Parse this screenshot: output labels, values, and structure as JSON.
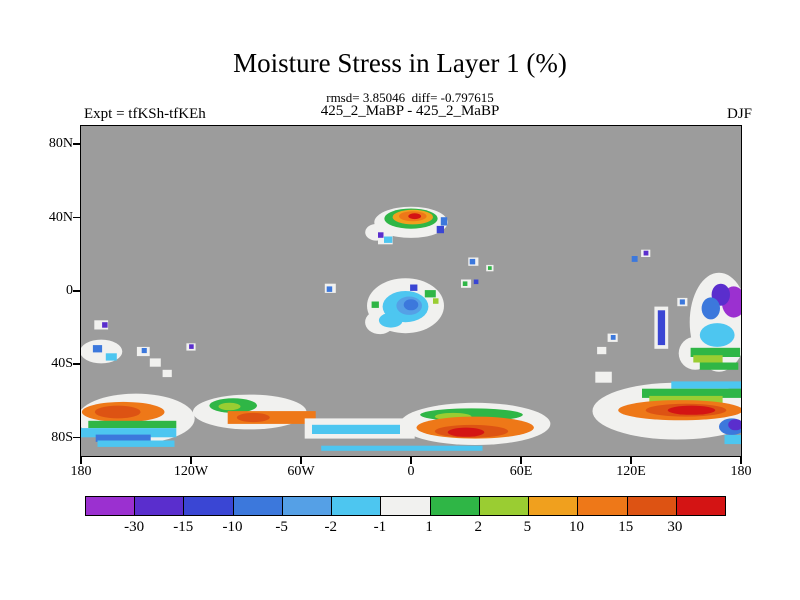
{
  "chart_data": {
    "type": "heatmap",
    "title": "Moisture Stress in Layer 1 (%)",
    "stats_line": "rmsd= 3.85046  diff= -0.797615",
    "diff_line": "425_2_MaBP - 425_2_MaBP",
    "experiment": "Expt = tfKSh-tfKEh",
    "season": "DJF",
    "units": "%",
    "projection": {
      "lon_range": [
        -180,
        180
      ],
      "lat_range": [
        -90,
        90
      ]
    },
    "axes": {
      "y_ticks": [
        {
          "label": "80N",
          "lat": 80
        },
        {
          "label": "40N",
          "lat": 40
        },
        {
          "label": "0",
          "lat": 0
        },
        {
          "label": "40S",
          "lat": -40
        },
        {
          "label": "80S",
          "lat": -80
        }
      ],
      "x_ticks": [
        {
          "label": "180",
          "lon": -180
        },
        {
          "label": "120W",
          "lon": -120
        },
        {
          "label": "60W",
          "lon": -60
        },
        {
          "label": "0",
          "lon": 0
        },
        {
          "label": "60E",
          "lon": 60
        },
        {
          "label": "120E",
          "lon": 120
        },
        {
          "label": "180",
          "lon": 180
        }
      ]
    },
    "palette": {
      "purple": "#9B30D0",
      "indigo": "#5A2ECD",
      "dblue": "#3A46D4",
      "mblue": "#3C78DC",
      "lblue": "#55A0E6",
      "cyan": "#4DC6F0",
      "white": "#F1F1EF",
      "green": "#2FB646",
      "ygreen": "#9ACD32",
      "gold": "#F0A01E",
      "orange": "#EE7818",
      "dorange": "#DD5313",
      "red": "#D41414"
    },
    "colorbar": {
      "levels": [
        -30,
        -15,
        -10,
        -5,
        -2,
        -1,
        1,
        2,
        5,
        10,
        15,
        30
      ],
      "labels": [
        "-30",
        "-15",
        "-10",
        "-5",
        "-2",
        "-1",
        "1",
        "2",
        "5",
        "10",
        "15",
        "30"
      ],
      "color_keys": [
        "purple",
        "indigo",
        "dblue",
        "mblue",
        "lblue",
        "cyan",
        "white",
        "green",
        "ygreen",
        "gold",
        "orange",
        "dorange",
        "red"
      ]
    },
    "map": {
      "background": "#9C9C9C",
      "patches": [
        [
          "e",
          0,
          37.5,
          40,
          17,
          "white"
        ],
        [
          "e",
          -19,
          32,
          12,
          9,
          "white"
        ],
        [
          "e",
          0,
          39.5,
          29,
          11,
          "green"
        ],
        [
          "e",
          1,
          40.3,
          22,
          8,
          "gold"
        ],
        [
          "e",
          1,
          40.8,
          15,
          5.5,
          "orange"
        ],
        [
          "e",
          2,
          40.8,
          7,
          3.2,
          "red"
        ],
        [
          "r",
          16,
          33.5,
          4,
          4,
          "dblue"
        ],
        [
          "r",
          18,
          38,
          3.5,
          4.5,
          "mblue"
        ],
        [
          "r",
          -14,
          28.5,
          8,
          6,
          "white"
        ],
        [
          "r",
          -12.5,
          28,
          4.5,
          3.5,
          "cyan"
        ],
        [
          "r",
          -16.5,
          30.5,
          3,
          3,
          "indigo"
        ],
        [
          "r",
          34,
          16,
          5.5,
          4.5,
          "white"
        ],
        [
          "r",
          33.5,
          16,
          3,
          3,
          "mblue"
        ],
        [
          "r",
          43,
          12.5,
          4,
          3.5,
          "white"
        ],
        [
          "r",
          43,
          12.5,
          2,
          2,
          "green"
        ],
        [
          "r",
          -44,
          1.5,
          6,
          5,
          "white"
        ],
        [
          "r",
          -44.5,
          1,
          3,
          3,
          "mblue"
        ],
        [
          "e",
          -3,
          -8,
          42,
          30,
          "white"
        ],
        [
          "e",
          -17,
          -17,
          16,
          13,
          "white"
        ],
        [
          "e",
          -3,
          -8.5,
          25,
          17,
          "cyan"
        ],
        [
          "e",
          -11,
          -16,
          13,
          8,
          "cyan"
        ],
        [
          "e",
          -1,
          -8,
          14,
          10,
          "lblue"
        ],
        [
          "e",
          0,
          -7.5,
          8,
          6,
          "mblue"
        ],
        [
          "r",
          1.5,
          1.8,
          4,
          3.5,
          "dblue"
        ],
        [
          "r",
          10.5,
          -1.5,
          6,
          4,
          "green"
        ],
        [
          "r",
          13.5,
          -5.5,
          3,
          3,
          "ygreen"
        ],
        [
          "r",
          -19.5,
          -7.5,
          4,
          3.5,
          "green"
        ],
        [
          "r",
          30,
          4,
          5.5,
          4.5,
          "white"
        ],
        [
          "r",
          29.5,
          4,
          2.5,
          2.5,
          "green"
        ],
        [
          "r",
          35.5,
          5,
          2.5,
          2.5,
          "dblue"
        ],
        [
          "r",
          -169,
          -18.5,
          7.5,
          5,
          "white"
        ],
        [
          "r",
          -167,
          -18.5,
          3,
          3,
          "indigo"
        ],
        [
          "e",
          -169,
          -33,
          23,
          13,
          "white"
        ],
        [
          "r",
          -171,
          -31.5,
          5,
          4,
          "mblue"
        ],
        [
          "r",
          -163.5,
          -36,
          6,
          4,
          "cyan"
        ],
        [
          "r",
          -146,
          -33,
          7,
          5,
          "white"
        ],
        [
          "r",
          -145.5,
          -32.5,
          2.8,
          2.8,
          "mblue"
        ],
        [
          "r",
          -139.5,
          -39,
          6,
          4.5,
          "white"
        ],
        [
          "r",
          -133,
          -45,
          5,
          4,
          "white"
        ],
        [
          "r",
          -120,
          -30.5,
          5,
          4,
          "white"
        ],
        [
          "r",
          -119.8,
          -30.3,
          2.5,
          2.5,
          "indigo"
        ],
        [
          "r",
          122,
          17.5,
          3.2,
          3.2,
          "mblue"
        ],
        [
          "r",
          128,
          20.5,
          5,
          4,
          "white"
        ],
        [
          "r",
          128.2,
          20.7,
          2.6,
          2.6,
          "indigo"
        ],
        [
          "e",
          168,
          -17,
          32,
          54,
          "white"
        ],
        [
          "e",
          155,
          -34,
          18,
          18,
          "white"
        ],
        [
          "e",
          176,
          -6,
          13,
          17,
          "purple"
        ],
        [
          "e",
          169,
          -2,
          10,
          12,
          "indigo"
        ],
        [
          "e",
          163.5,
          -9.5,
          10,
          12,
          "mblue"
        ],
        [
          "e",
          167,
          -24,
          19,
          13,
          "cyan"
        ],
        [
          "r",
          166,
          -33.5,
          27,
          5,
          "green"
        ],
        [
          "r",
          162,
          -37,
          16,
          4,
          "ygreen"
        ],
        [
          "r",
          168,
          -41,
          21,
          4,
          "green"
        ],
        [
          "r",
          136.5,
          -20,
          7.5,
          23,
          "white"
        ],
        [
          "r",
          136.6,
          -20,
          4,
          19,
          "dblue"
        ],
        [
          "r",
          148,
          -6,
          5.5,
          4.5,
          "white"
        ],
        [
          "r",
          148,
          -6,
          2.8,
          2.8,
          "mblue"
        ],
        [
          "r",
          110,
          -25.5,
          5.5,
          4.5,
          "white"
        ],
        [
          "r",
          110.3,
          -25.3,
          2.6,
          2.6,
          "mblue"
        ],
        [
          "r",
          104,
          -32.5,
          5,
          4,
          "white"
        ],
        [
          "e",
          -150,
          -69.5,
          64,
          27,
          "white"
        ],
        [
          "e",
          -157,
          -66,
          45,
          11,
          "orange"
        ],
        [
          "e",
          -160,
          -66,
          25,
          7,
          "dorange"
        ],
        [
          "r",
          -152,
          -72.8,
          48,
          4,
          "green"
        ],
        [
          "r",
          -154,
          -77.3,
          52,
          5,
          "cyan"
        ],
        [
          "r",
          -157,
          -80.3,
          30,
          4,
          "mblue"
        ],
        [
          "r",
          -150,
          -83.3,
          42,
          3.5,
          "cyan"
        ],
        [
          "e",
          -88,
          -66,
          62,
          19,
          "white"
        ],
        [
          "e",
          -97,
          -62.5,
          26,
          8,
          "green"
        ],
        [
          "e",
          -99,
          -63,
          12,
          4,
          "ygreen"
        ],
        [
          "r",
          -76,
          -69,
          48,
          7,
          "orange"
        ],
        [
          "e",
          -86,
          -69,
          18,
          5,
          "dorange"
        ],
        [
          "r",
          -28,
          -75,
          60,
          11,
          "white"
        ],
        [
          "r",
          -30,
          -75.5,
          48,
          5,
          "cyan"
        ],
        [
          "e",
          35,
          -72.5,
          82,
          23,
          "white"
        ],
        [
          "e",
          33,
          -67.5,
          56,
          7,
          "green"
        ],
        [
          "e",
          23,
          -68.5,
          20,
          4,
          "ygreen"
        ],
        [
          "e",
          35,
          -74.5,
          64,
          12,
          "orange"
        ],
        [
          "e",
          33,
          -76.5,
          40,
          7,
          "dorange"
        ],
        [
          "e",
          30,
          -77,
          20,
          5,
          "red"
        ],
        [
          "r",
          -5,
          -85.8,
          88,
          2.8,
          "cyan"
        ],
        [
          "e",
          145,
          -65.5,
          92,
          31,
          "white"
        ],
        [
          "r",
          105,
          -47,
          9,
          6,
          "white"
        ],
        [
          "r",
          162,
          -51.3,
          40,
          4,
          "cyan"
        ],
        [
          "r",
          155,
          -55.8,
          58,
          5,
          "green"
        ],
        [
          "r",
          150,
          -59.2,
          40,
          4,
          "ygreen"
        ],
        [
          "e",
          147,
          -65,
          68,
          11,
          "orange"
        ],
        [
          "e",
          150,
          -65,
          44,
          7,
          "dorange"
        ],
        [
          "e",
          153,
          -65,
          26,
          5,
          "red"
        ],
        [
          "e",
          175,
          -74,
          14,
          9,
          "mblue"
        ],
        [
          "e",
          177,
          -73,
          8,
          6,
          "indigo"
        ],
        [
          "r",
          177,
          -81,
          12,
          5,
          "cyan"
        ]
      ]
    }
  }
}
